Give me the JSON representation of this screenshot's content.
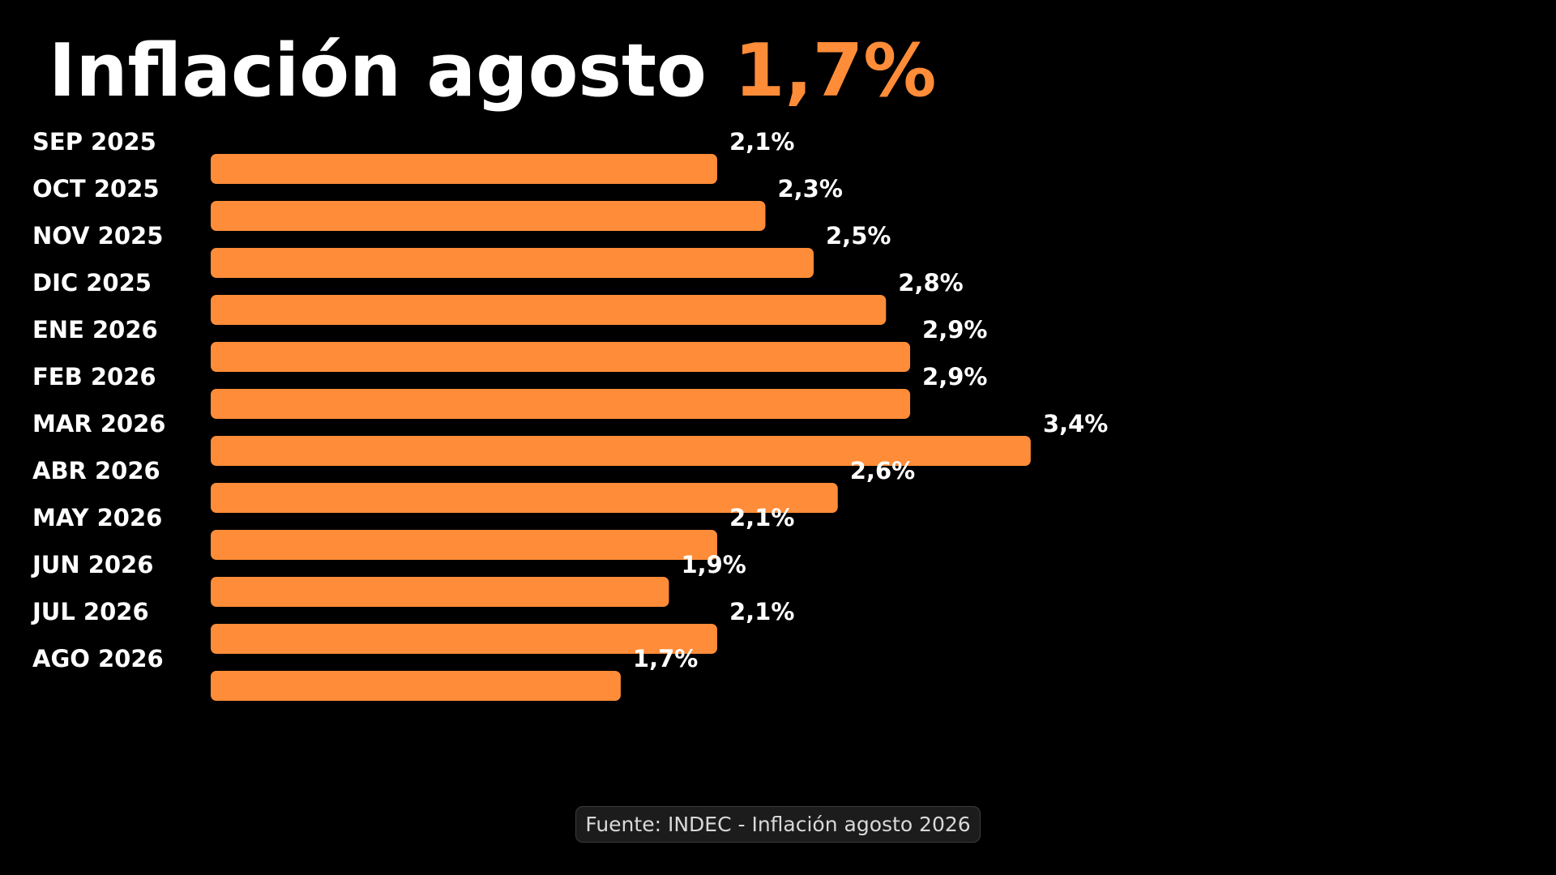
{
  "title": {
    "main": "Inflación agosto",
    "highlight": "1,7%"
  },
  "colors": {
    "background": "#000000",
    "bar": "#FF8C38",
    "accent": "#FF8C38",
    "text": "#FFFFFF"
  },
  "chart_data": {
    "type": "bar",
    "orientation": "horizontal",
    "title": "Inflación agosto 1,7%",
    "categories": [
      "SEP 2025",
      "OCT 2025",
      "NOV 2025",
      "DIC 2025",
      "ENE 2026",
      "FEB 2026",
      "MAR 2026",
      "ABR 2026",
      "MAY 2026",
      "JUN 2026",
      "JUL 2026",
      "AGO 2026"
    ],
    "values": [
      2.1,
      2.3,
      2.5,
      2.8,
      2.9,
      2.9,
      3.4,
      2.6,
      2.1,
      1.9,
      2.1,
      1.7
    ],
    "value_labels": [
      "2,1%",
      "2,3%",
      "2,5%",
      "2,8%",
      "2,9%",
      "2,9%",
      "3,4%",
      "2,6%",
      "2,1%",
      "1,9%",
      "2,1%",
      "1,7%"
    ],
    "xlabel": "",
    "ylabel": "",
    "grid": false,
    "legend": "none"
  },
  "source": "Fuente: INDEC - Inflación agosto 2026"
}
